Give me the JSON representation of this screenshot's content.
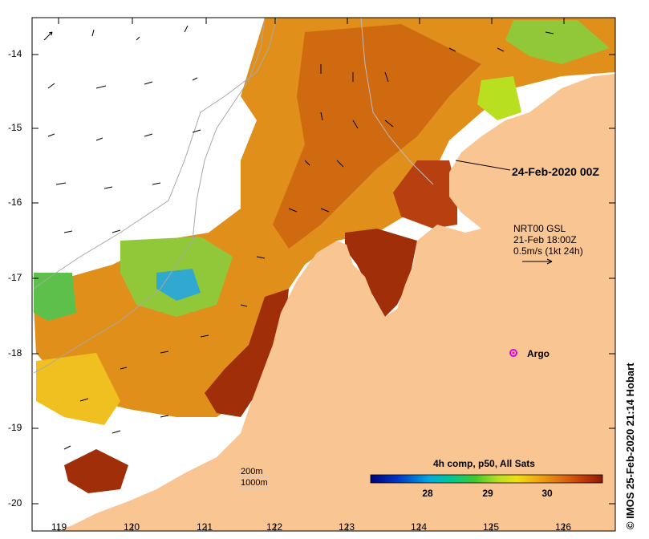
{
  "map": {
    "date_label": "24-Feb-2020 00Z",
    "current_legend": {
      "line1": "NRT00 GSL",
      "line2": "21-Feb 18:00Z",
      "line3": "0.5m/s (1kt 24h)"
    },
    "argo_label": "Argo",
    "contour_legend": {
      "line1": "200m",
      "line2": "1000m"
    },
    "colorbar": {
      "title": "4h comp, p50, All Sats",
      "ticks": [
        "28",
        "29",
        "30"
      ]
    },
    "credit": "© IMOS 25-Feb-2020 21:14 Hobart",
    "lon_ticks": [
      "119",
      "120",
      "121",
      "122",
      "123",
      "124",
      "125",
      "126"
    ],
    "lat_ticks": [
      "-14",
      "-15",
      "-16",
      "-17",
      "-18",
      "-19",
      "-20"
    ],
    "colors": {
      "land": "#f9c593",
      "argo_marker": "#e000e0",
      "warm_sst": "#e0901a",
      "hot_sst": "#a02e08",
      "cool_sst": "#90c83a"
    }
  }
}
